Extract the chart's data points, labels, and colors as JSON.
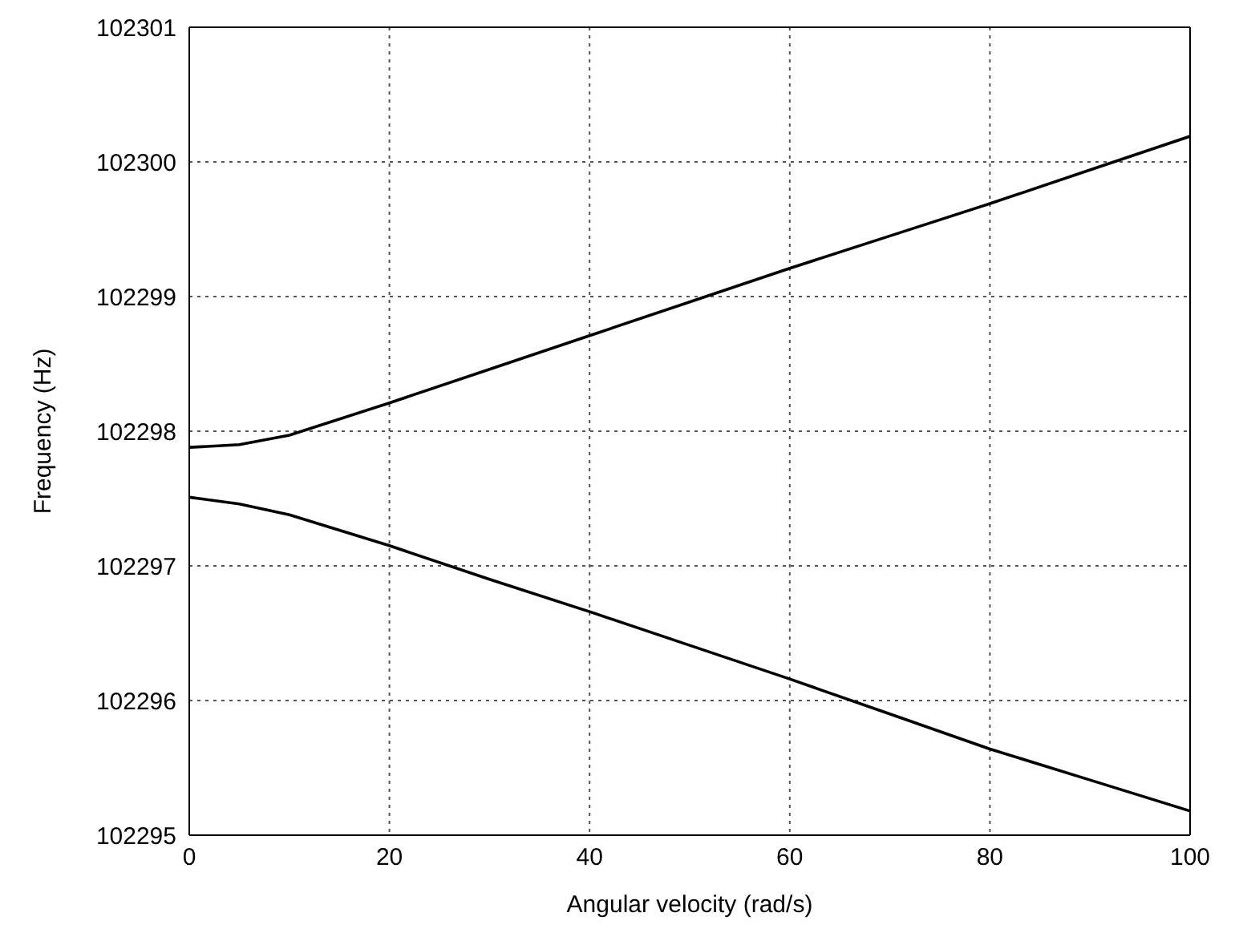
{
  "chart_data": {
    "type": "line",
    "xlabel": "Angular velocity (rad/s)",
    "ylabel": "Frequency (Hz)",
    "x": [
      0,
      5,
      10,
      20,
      30,
      40,
      50,
      60,
      70,
      80,
      90,
      100
    ],
    "series": [
      {
        "color": "#000000",
        "values": [
          102297.88,
          102297.9,
          102297.97,
          102298.21,
          102298.46,
          102298.71,
          102298.96,
          102299.21,
          102299.45,
          102299.69,
          102299.94,
          102300.19
        ]
      },
      {
        "color": "#000000",
        "values": [
          102297.51,
          102297.46,
          102297.38,
          102297.15,
          102296.9,
          102296.66,
          102296.41,
          102296.16,
          102295.9,
          102295.64,
          102295.41,
          102295.18
        ]
      }
    ],
    "xlim": [
      0,
      100
    ],
    "xticks": [
      0,
      20,
      40,
      60,
      80,
      100
    ],
    "ylim": [
      102295,
      102301
    ],
    "yticks": [
      102295,
      102296,
      102297,
      102298,
      102299,
      102300,
      102301
    ],
    "grid": true,
    "legend": false,
    "marker": "none",
    "line_style": "solid"
  }
}
